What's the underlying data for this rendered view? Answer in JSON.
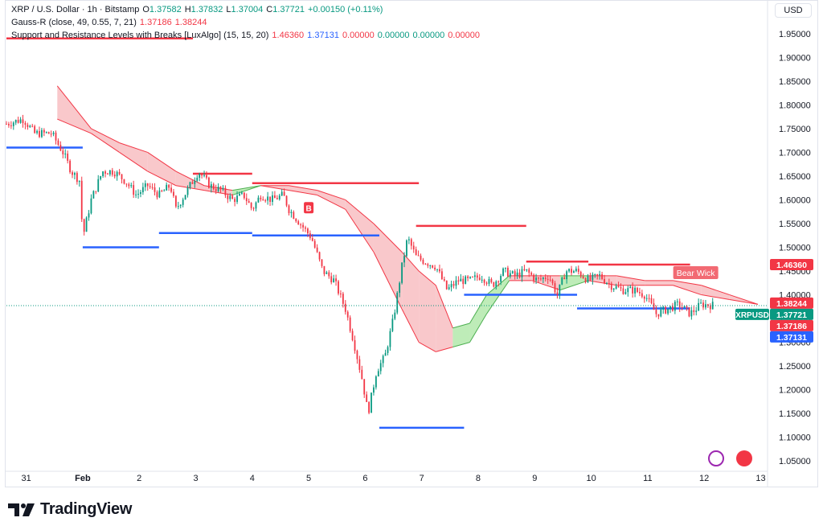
{
  "legend": {
    "symbol_line": "XRP / U.S. Dollar · 1h · Bitstamp",
    "open_label": "O",
    "open": "1.37582",
    "high_label": "H",
    "high": "1.37832",
    "low_label": "L",
    "low": "1.37004",
    "close_label": "C",
    "close": "1.37721",
    "change": "+0.00150 (+0.11%)",
    "gauss_name": "Gauss-R (close, 49, 0.55, 7, 21)",
    "gauss_v1": "1.37186",
    "gauss_v2": "1.38244",
    "sr_name": "Support and Resistance Levels with Breaks [LuxAlgo] (15, 15, 20)",
    "sr_v1": "1.46360",
    "sr_v2": "1.37131",
    "sr_v3": "0.00000",
    "sr_v4": "0.00000",
    "sr_v5": "0.00000",
    "sr_v6": "0.00000"
  },
  "currency_button": "USD",
  "brand": "TradingView",
  "colors": {
    "up": "#089981",
    "down": "#f23645",
    "resistance": "#f23645",
    "support": "#2962ff",
    "band_bear": "#f7b6b9",
    "band_bull": "#a8e6a0"
  },
  "chart_data": {
    "type": "candlestick",
    "symbol": "XRPUSD",
    "interval": "1h",
    "ylim": [
      1.03,
      1.97
    ],
    "y_ticks": [
      "1.05000",
      "1.10000",
      "1.15000",
      "1.20000",
      "1.25000",
      "1.30000",
      "1.35000",
      "1.40000",
      "1.45000",
      "1.50000",
      "1.55000",
      "1.60000",
      "1.65000",
      "1.70000",
      "1.75000",
      "1.80000",
      "1.85000",
      "1.90000",
      "1.95000"
    ],
    "x_ticks": [
      {
        "label": "31",
        "t": 0.35
      },
      {
        "label": "Feb",
        "t": 1.35
      },
      {
        "label": "2",
        "t": 2.35
      },
      {
        "label": "3",
        "t": 3.35
      },
      {
        "label": "4",
        "t": 4.35
      },
      {
        "label": "5",
        "t": 5.35
      },
      {
        "label": "6",
        "t": 6.35
      },
      {
        "label": "7",
        "t": 7.35
      },
      {
        "label": "8",
        "t": 8.35
      },
      {
        "label": "9",
        "t": 9.35
      },
      {
        "label": "10",
        "t": 10.35
      },
      {
        "label": "11",
        "t": 11.35
      },
      {
        "label": "12",
        "t": 12.35
      },
      {
        "label": "13",
        "t": 13.35
      }
    ],
    "t_range": [
      0,
      13.4
    ],
    "price_path": [
      [
        0.0,
        1.76
      ],
      [
        0.3,
        1.77
      ],
      [
        0.5,
        1.74
      ],
      [
        0.8,
        1.74
      ],
      [
        1.0,
        1.7
      ],
      [
        1.15,
        1.66
      ],
      [
        1.3,
        1.64
      ],
      [
        1.35,
        1.52
      ],
      [
        1.5,
        1.6
      ],
      [
        1.7,
        1.66
      ],
      [
        1.9,
        1.66
      ],
      [
        2.1,
        1.64
      ],
      [
        2.3,
        1.61
      ],
      [
        2.5,
        1.63
      ],
      [
        2.7,
        1.61
      ],
      [
        2.9,
        1.63
      ],
      [
        3.0,
        1.58
      ],
      [
        3.2,
        1.62
      ],
      [
        3.4,
        1.66
      ],
      [
        3.6,
        1.63
      ],
      [
        3.8,
        1.62
      ],
      [
        4.0,
        1.6
      ],
      [
        4.2,
        1.61
      ],
      [
        4.35,
        1.58
      ],
      [
        4.5,
        1.61
      ],
      [
        4.7,
        1.6
      ],
      [
        4.9,
        1.61
      ],
      [
        5.0,
        1.58
      ],
      [
        5.2,
        1.55
      ],
      [
        5.4,
        1.52
      ],
      [
        5.6,
        1.45
      ],
      [
        5.8,
        1.43
      ],
      [
        6.0,
        1.37
      ],
      [
        6.15,
        1.3
      ],
      [
        6.3,
        1.22
      ],
      [
        6.4,
        1.15
      ],
      [
        6.55,
        1.24
      ],
      [
        6.7,
        1.27
      ],
      [
        6.85,
        1.35
      ],
      [
        7.0,
        1.46
      ],
      [
        7.1,
        1.52
      ],
      [
        7.25,
        1.48
      ],
      [
        7.4,
        1.47
      ],
      [
        7.6,
        1.46
      ],
      [
        7.8,
        1.41
      ],
      [
        8.0,
        1.43
      ],
      [
        8.2,
        1.43
      ],
      [
        8.4,
        1.44
      ],
      [
        8.6,
        1.42
      ],
      [
        8.8,
        1.45
      ],
      [
        9.0,
        1.44
      ],
      [
        9.2,
        1.45
      ],
      [
        9.4,
        1.43
      ],
      [
        9.6,
        1.44
      ],
      [
        9.75,
        1.4
      ],
      [
        9.9,
        1.45
      ],
      [
        10.1,
        1.45
      ],
      [
        10.3,
        1.43
      ],
      [
        10.5,
        1.44
      ],
      [
        10.7,
        1.42
      ],
      [
        10.9,
        1.41
      ],
      [
        11.1,
        1.41
      ],
      [
        11.3,
        1.4
      ],
      [
        11.5,
        1.36
      ],
      [
        11.7,
        1.37
      ],
      [
        11.9,
        1.38
      ],
      [
        12.1,
        1.36
      ],
      [
        12.3,
        1.38
      ],
      [
        12.5,
        1.378
      ]
    ],
    "gauss_band": [
      {
        "t": 0.9,
        "upper": 1.84,
        "lower": 1.77
      },
      {
        "t": 1.5,
        "upper": 1.75,
        "lower": 1.74
      },
      {
        "t": 2.0,
        "upper": 1.72,
        "lower": 1.7
      },
      {
        "t": 2.5,
        "upper": 1.7,
        "lower": 1.66
      },
      {
        "t": 3.0,
        "upper": 1.66,
        "lower": 1.63
      },
      {
        "t": 3.5,
        "upper": 1.63,
        "lower": 1.62
      },
      {
        "t": 4.0,
        "upper": 1.62,
        "lower": 1.61
      },
      {
        "t": 4.5,
        "upper": 1.63,
        "lower": 1.63
      },
      {
        "t": 5.0,
        "upper": 1.63,
        "lower": 1.62
      },
      {
        "t": 5.5,
        "upper": 1.62,
        "lower": 1.61
      },
      {
        "t": 6.0,
        "upper": 1.6,
        "lower": 1.58
      },
      {
        "t": 6.5,
        "upper": 1.55,
        "lower": 1.49
      },
      {
        "t": 7.0,
        "upper": 1.49,
        "lower": 1.37
      },
      {
        "t": 7.3,
        "upper": 1.45,
        "lower": 1.3
      },
      {
        "t": 7.6,
        "upper": 1.42,
        "lower": 1.28
      },
      {
        "t": 7.9,
        "upper": 1.33,
        "lower": 1.29
      },
      {
        "t": 8.2,
        "upper": 1.34,
        "lower": 1.3
      },
      {
        "t": 8.5,
        "upper": 1.4,
        "lower": 1.36
      },
      {
        "t": 8.9,
        "upper": 1.44,
        "lower": 1.43
      },
      {
        "t": 9.3,
        "upper": 1.44,
        "lower": 1.43
      },
      {
        "t": 9.8,
        "upper": 1.44,
        "lower": 1.41
      },
      {
        "t": 10.3,
        "upper": 1.44,
        "lower": 1.43
      },
      {
        "t": 10.8,
        "upper": 1.44,
        "lower": 1.42
      },
      {
        "t": 11.3,
        "upper": 1.43,
        "lower": 1.42
      },
      {
        "t": 11.8,
        "upper": 1.43,
        "lower": 1.42
      },
      {
        "t": 12.3,
        "upper": 1.42,
        "lower": 1.4
      },
      {
        "t": 12.8,
        "upper": 1.4,
        "lower": 1.39
      },
      {
        "t": 13.3,
        "upper": 1.38,
        "lower": 1.38
      }
    ],
    "resistance_lines": [
      {
        "t0": 0.0,
        "t1": 3.3,
        "y": 1.94
      },
      {
        "t0": 3.3,
        "t1": 4.35,
        "y": 1.655
      },
      {
        "t0": 4.35,
        "t1": 7.3,
        "y": 1.635
      },
      {
        "t0": 7.25,
        "t1": 9.2,
        "y": 1.545
      },
      {
        "t0": 9.2,
        "t1": 10.3,
        "y": 1.47
      },
      {
        "t0": 10.3,
        "t1": 12.1,
        "y": 1.4636
      }
    ],
    "support_lines": [
      {
        "t0": 0.0,
        "t1": 1.35,
        "y": 1.71
      },
      {
        "t0": 1.35,
        "t1": 2.7,
        "y": 1.5
      },
      {
        "t0": 2.7,
        "t1": 4.35,
        "y": 1.53
      },
      {
        "t0": 4.35,
        "t1": 6.6,
        "y": 1.525
      },
      {
        "t0": 6.6,
        "t1": 8.1,
        "y": 1.12
      },
      {
        "t0": 8.1,
        "t1": 10.1,
        "y": 1.4
      },
      {
        "t0": 10.1,
        "t1": 12.1,
        "y": 1.3713
      }
    ],
    "markers": [
      {
        "label": "B",
        "t": 5.35,
        "y": 1.58,
        "kind": "break"
      },
      {
        "label": "Bear Wick",
        "t": 12.2,
        "y": 1.445,
        "kind": "bear-wick"
      }
    ],
    "price_labels": [
      {
        "value": "1.46360",
        "y": 1.4636,
        "color": "#f23645"
      },
      {
        "value": "1.38244",
        "y": 1.38244,
        "color": "#f23645"
      },
      {
        "value": "1.37721",
        "y": 1.37721,
        "color": "#089981",
        "tag": "XRPUSD"
      },
      {
        "value": "1.37186",
        "y": 1.37186,
        "color": "#f23645"
      },
      {
        "value": "1.37131",
        "y": 1.37131,
        "color": "#2962ff"
      }
    ],
    "last_price": 1.37721
  }
}
